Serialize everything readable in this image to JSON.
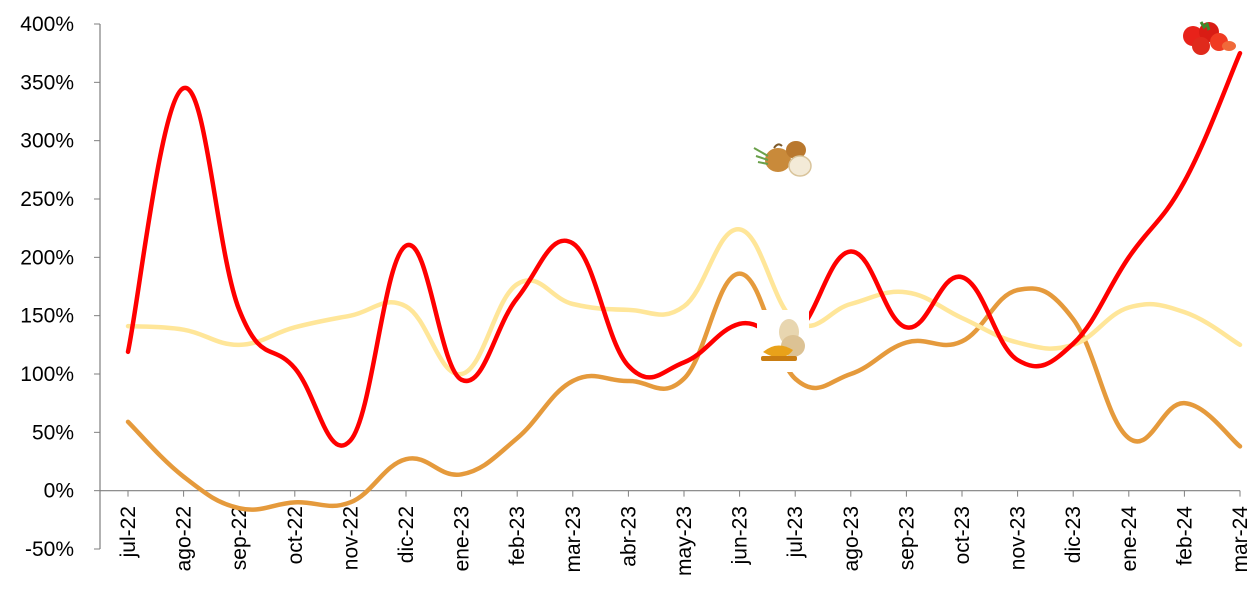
{
  "chart_data": {
    "type": "line",
    "title": "",
    "xlabel": "",
    "ylabel": "",
    "ylim": [
      -50,
      400
    ],
    "y_ticks": [
      "400%",
      "350%",
      "300%",
      "250%",
      "200%",
      "150%",
      "100%",
      "50%",
      "0%",
      "-50%"
    ],
    "y_tick_values": [
      400,
      350,
      300,
      250,
      200,
      150,
      100,
      50,
      0,
      -50
    ],
    "categories": [
      "jul-22",
      "ago-22",
      "sep-22",
      "oct-22",
      "nov-22",
      "dic-22",
      "ene-23",
      "feb-23",
      "mar-23",
      "abr-23",
      "may-23",
      "jun-23",
      "jul-23",
      "ago-23",
      "sep-23",
      "oct-23",
      "nov-23",
      "dic-23",
      "ene-24",
      "feb-24",
      "mar-24"
    ],
    "grid": false,
    "legend": "none",
    "series": [
      {
        "icon": "tomato-icon",
        "color": "#ff0000",
        "values": [
          119,
          345,
          155,
          105,
          43,
          210,
          95,
          165,
          212,
          107,
          110,
          143,
          135,
          205,
          140,
          183,
          112,
          126,
          200,
          265,
          375
        ]
      },
      {
        "icon": "onion-icon",
        "color": "#ffe699",
        "values": [
          141,
          138,
          125,
          140,
          150,
          158,
          100,
          177,
          160,
          155,
          158,
          224,
          145,
          160,
          170,
          148,
          127,
          125,
          157,
          153,
          125
        ]
      },
      {
        "icon": "squash-icon",
        "color": "#e59a3c",
        "values": [
          59,
          12,
          -15,
          -10,
          -10,
          27,
          14,
          45,
          94,
          94,
          96,
          186,
          96,
          100,
          127,
          128,
          172,
          147,
          45,
          75,
          38
        ]
      }
    ]
  }
}
